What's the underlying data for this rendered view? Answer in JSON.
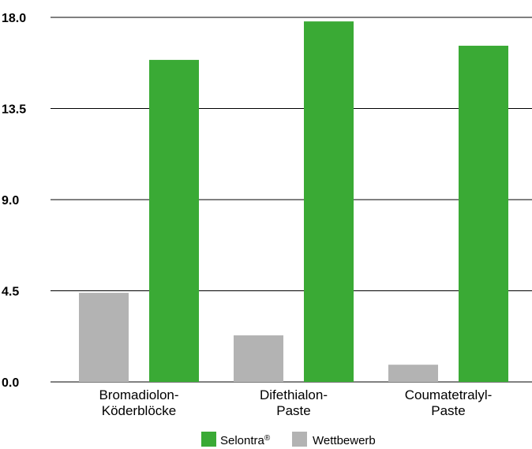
{
  "chart_data": {
    "type": "bar",
    "categories": [
      [
        "Bromadiolon-",
        "Köderblöcke"
      ],
      [
        "Difethialon-",
        "Paste"
      ],
      [
        "Coumatetralyl-",
        "Paste"
      ]
    ],
    "series": [
      {
        "name": "Wettbewerb",
        "color": "#b3b3b3",
        "values": [
          4.4,
          2.3,
          0.85
        ]
      },
      {
        "name": "Selontra",
        "name_sup": "®",
        "color": "#3aaa35",
        "values": [
          15.9,
          17.8,
          16.6
        ]
      }
    ],
    "yticks": [
      "0.0",
      "4.5",
      "9.0",
      "13.5",
      "18.0"
    ],
    "ylim": [
      0,
      18
    ],
    "grid": true,
    "legend_position": "bottom-center",
    "legend_order": [
      "Selontra",
      "Wettbewerb"
    ]
  }
}
